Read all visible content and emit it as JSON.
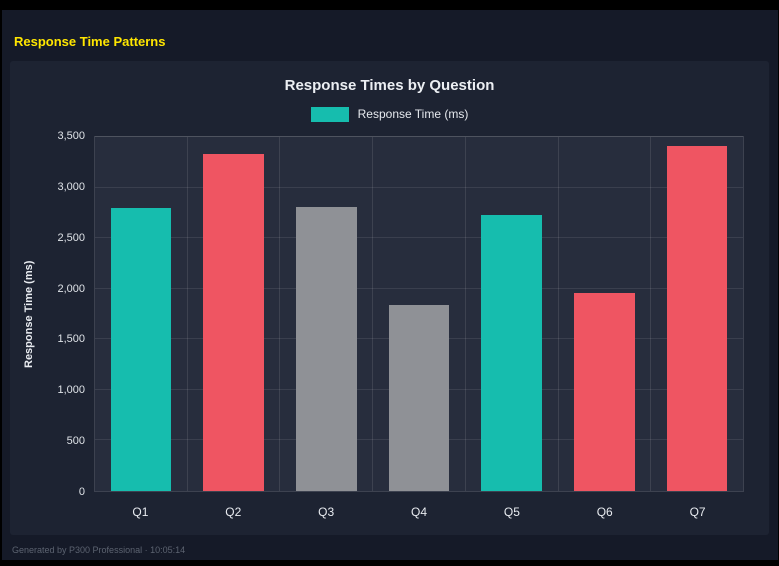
{
  "page": {
    "title": "Response Time Patterns",
    "footer": "Generated by P300 Professional · 10:05:14"
  },
  "chart_data": {
    "type": "bar",
    "title": "Response Times by Question",
    "legend": [
      {
        "label": "Response Time (ms)",
        "color": "#16bdae"
      }
    ],
    "categories": [
      "Q1",
      "Q2",
      "Q3",
      "Q4",
      "Q5",
      "Q6",
      "Q7"
    ],
    "values": [
      2800,
      3330,
      2810,
      1840,
      2730,
      1960,
      3410
    ],
    "bar_colors": [
      "#16bdae",
      "#ef5562",
      "#8f9196",
      "#8f9196",
      "#16bdae",
      "#ef5562",
      "#ef5562"
    ],
    "ylabel": "Response Time (ms)",
    "xlabel": "",
    "ylim": [
      0,
      3500
    ],
    "yticks": [
      0,
      500,
      1000,
      1500,
      2000,
      2500,
      3000,
      3500
    ],
    "ytick_labels": [
      "0",
      "500",
      "1,000",
      "1,500",
      "2,000",
      "2,500",
      "3,000",
      "3,500"
    ],
    "grid": true,
    "legend_position": "top"
  }
}
